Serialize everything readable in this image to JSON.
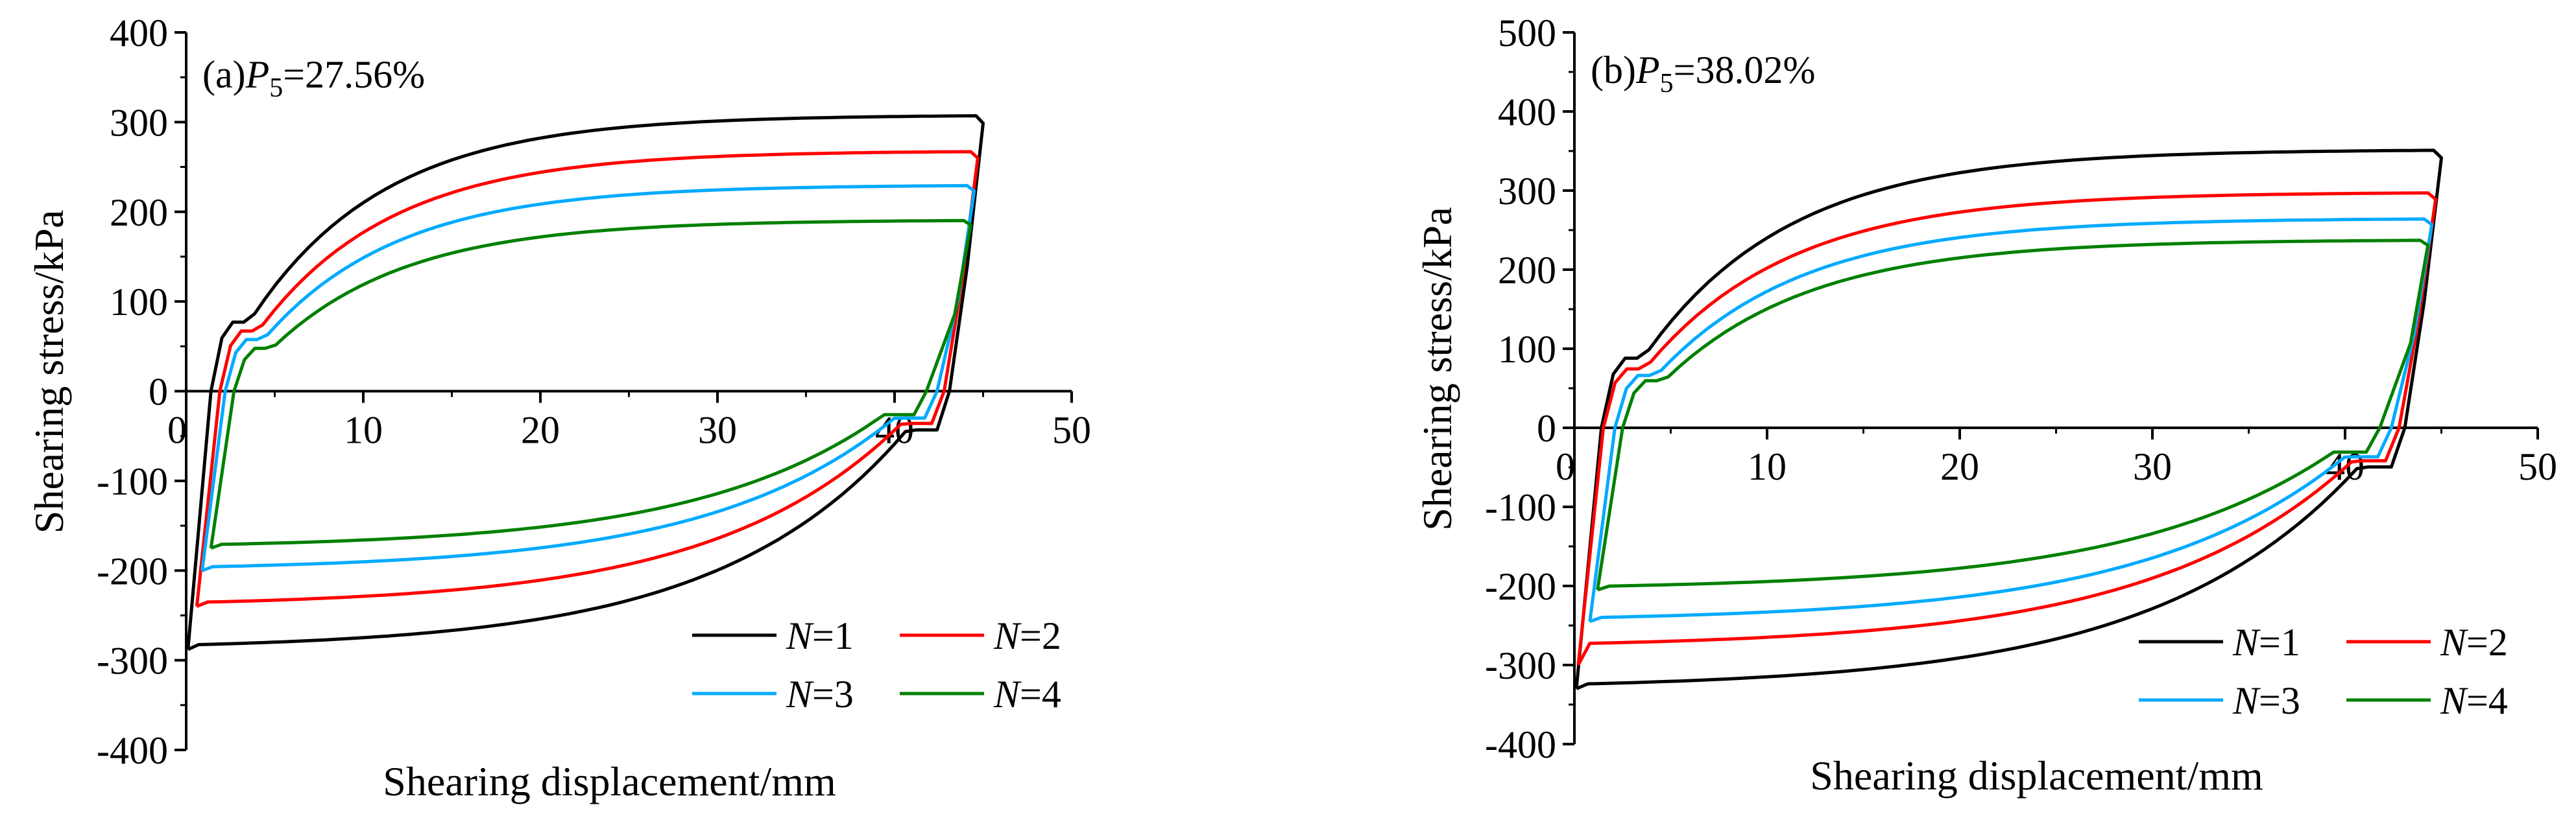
{
  "chart_data": [
    {
      "type": "line",
      "panel_label": "(a)",
      "p_label": "P",
      "p_sub": "5",
      "p_value": "=27.56%",
      "xlabel": "Shearing displacement/mm",
      "ylabel": "Shearing stress/kPa",
      "xlim": [
        0,
        50
      ],
      "ylim": [
        -400,
        400
      ],
      "xticks": [
        "0",
        "10",
        "20",
        "30",
        "40",
        "50"
      ],
      "yticks": [
        "400",
        "300",
        "200",
        "100",
        "0",
        "-100",
        "-200",
        "-300",
        "-400"
      ],
      "xtick_values": [
        0,
        10,
        20,
        30,
        40,
        50
      ],
      "ytick_values": [
        400,
        300,
        200,
        100,
        0,
        -100,
        -200,
        -300,
        -400
      ],
      "legend": [
        "N=1",
        "N=2",
        "N=3",
        "N=4"
      ],
      "series": [
        {
          "name": "N=1",
          "color": "#000000",
          "upper_peak": 308,
          "lower_trough": -288,
          "start_x": 0.1,
          "start_y": -288,
          "upper_end": 45.0,
          "rev_x": 42.8
        },
        {
          "name": "N=2",
          "color": "#ff0000",
          "upper_peak": 268,
          "lower_trough": -240,
          "start_x": 0.6,
          "start_y": -240,
          "upper_end": 44.7,
          "rev_x": 42.5
        },
        {
          "name": "N=3",
          "color": "#00aaff",
          "upper_peak": 230,
          "lower_trough": -200,
          "start_x": 0.9,
          "start_y": -200,
          "upper_end": 44.5,
          "rev_x": 42.1
        },
        {
          "name": "N=4",
          "color": "#008000",
          "upper_peak": 191,
          "lower_trough": -175,
          "start_x": 1.4,
          "start_y": -175,
          "upper_end": 44.3,
          "rev_x": 41.5
        }
      ]
    },
    {
      "type": "line",
      "panel_label": "(b)",
      "p_label": "P",
      "p_sub": "5",
      "p_value": "=38.02%",
      "xlabel": "Shearing displacement/mm",
      "ylabel": "Shearing stress/kPa",
      "xlim": [
        0,
        50
      ],
      "ylim": [
        -400,
        500
      ],
      "xticks": [
        "0",
        "10",
        "20",
        "30",
        "40",
        "50"
      ],
      "yticks": [
        "500",
        "400",
        "300",
        "200",
        "100",
        "0",
        "-100",
        "-200",
        "-300",
        "-400"
      ],
      "xtick_values": [
        0,
        10,
        20,
        30,
        40,
        50
      ],
      "ytick_values": [
        500,
        400,
        300,
        200,
        100,
        0,
        -100,
        -200,
        -300,
        -400
      ],
      "legend": [
        "N=1",
        "N=2",
        "N=3",
        "N=4"
      ],
      "series": [
        {
          "name": "N=1",
          "color": "#000000",
          "upper_peak": 352,
          "lower_trough": -330,
          "start_x": 0.1,
          "start_y": -330,
          "upper_end": 45.0,
          "rev_x": 42.8
        },
        {
          "name": "N=2",
          "color": "#ff0000",
          "upper_peak": 298,
          "lower_trough": -278,
          "start_x": 0.2,
          "start_y": -300,
          "upper_end": 44.7,
          "rev_x": 42.5
        },
        {
          "name": "N=3",
          "color": "#00aaff",
          "upper_peak": 265,
          "lower_trough": -245,
          "start_x": 0.8,
          "start_y": -245,
          "upper_end": 44.5,
          "rev_x": 42.1
        },
        {
          "name": "N=4",
          "color": "#008000",
          "upper_peak": 238,
          "lower_trough": -205,
          "start_x": 1.2,
          "start_y": -205,
          "upper_end": 44.3,
          "rev_x": 41.5
        }
      ]
    }
  ]
}
